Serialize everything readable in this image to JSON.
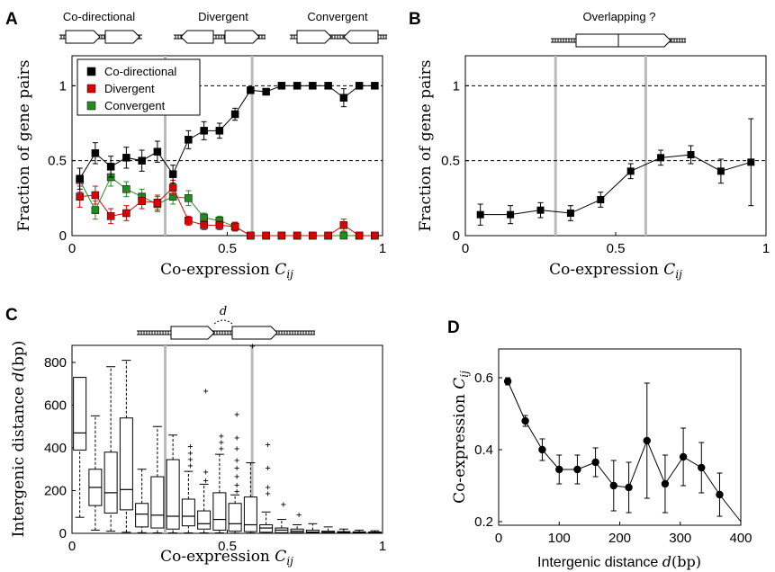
{
  "figure": {
    "panel_letters": [
      "A",
      "B",
      "C",
      "D"
    ],
    "schematic_labels": {
      "co_directional": "Co-directional",
      "divergent": "Divergent",
      "convergent": "Convergent",
      "overlapping": "Overlapping ?",
      "distance_symbol": "d"
    }
  },
  "chart_data": [
    {
      "panel": "A",
      "type": "line",
      "xlabel": "Co-expression C_ij",
      "ylabel": "Fraction of gene pairs",
      "xlim": [
        0,
        1
      ],
      "ylim": [
        0,
        1.2
      ],
      "xticks": [
        "0",
        "0.5",
        "1"
      ],
      "yticks": [
        "0",
        "0.5",
        "1"
      ],
      "grid": false,
      "legend_position": "top-left",
      "reference_lines_y": [
        0.5,
        1.0
      ],
      "vertical_lines_x": [
        0.3,
        0.58
      ],
      "x": [
        0.025,
        0.075,
        0.125,
        0.175,
        0.225,
        0.275,
        0.325,
        0.375,
        0.425,
        0.475,
        0.525,
        0.575,
        0.625,
        0.675,
        0.725,
        0.775,
        0.825,
        0.875,
        0.925,
        0.975
      ],
      "series": [
        {
          "name": "Co-directional",
          "color": "#000000",
          "values": [
            0.38,
            0.55,
            0.46,
            0.52,
            0.5,
            0.56,
            0.41,
            0.64,
            0.7,
            0.7,
            0.81,
            0.97,
            0.96,
            1.0,
            1.0,
            1.0,
            1.0,
            0.92,
            1.0,
            1.0
          ],
          "errors": [
            0.07,
            0.07,
            0.07,
            0.07,
            0.07,
            0.07,
            0.06,
            0.06,
            0.06,
            0.05,
            0.04,
            0.02,
            0.02,
            0.0,
            0.0,
            0.0,
            0.0,
            0.06,
            0.0,
            0.0
          ]
        },
        {
          "name": "Divergent",
          "color": "#dd0000",
          "values": [
            0.26,
            0.27,
            0.13,
            0.15,
            0.23,
            0.22,
            0.32,
            0.1,
            0.07,
            0.07,
            0.06,
            0.0,
            0.0,
            0.0,
            0.0,
            0.0,
            0.0,
            0.07,
            0.0,
            0.0
          ],
          "errors": [
            0.07,
            0.06,
            0.05,
            0.05,
            0.05,
            0.05,
            0.05,
            0.03,
            0.03,
            0.03,
            0.03,
            0.0,
            0.0,
            0.0,
            0.0,
            0.0,
            0.0,
            0.04,
            0.0,
            0.0
          ]
        },
        {
          "name": "Convergent",
          "color": "#228b22",
          "values": [
            0.37,
            0.17,
            0.39,
            0.31,
            0.26,
            0.21,
            0.26,
            0.25,
            0.12,
            0.1,
            0.06,
            0.0,
            0.0,
            0.0,
            0.0,
            0.0,
            0.0,
            0.0,
            0.0,
            0.0
          ],
          "errors": [
            0.08,
            0.06,
            0.06,
            0.05,
            0.05,
            0.05,
            0.05,
            0.05,
            0.03,
            0.03,
            0.02,
            0.0,
            0.0,
            0.0,
            0.0,
            0.0,
            0.0,
            0.0,
            0.0,
            0.0
          ]
        }
      ]
    },
    {
      "panel": "B",
      "type": "line",
      "xlabel": "Co-expression C_ij",
      "ylabel": "Fraction of gene pairs",
      "xlim": [
        0,
        1
      ],
      "ylim": [
        0,
        1.2
      ],
      "xticks": [
        "0",
        "0.5",
        "1"
      ],
      "yticks": [
        "0",
        "0.5",
        "1"
      ],
      "grid": false,
      "reference_lines_y": [
        0.5,
        1.0
      ],
      "vertical_lines_x": [
        0.3,
        0.6
      ],
      "x": [
        0.05,
        0.15,
        0.25,
        0.35,
        0.45,
        0.55,
        0.65,
        0.75,
        0.85,
        0.95
      ],
      "series": [
        {
          "color": "#000000",
          "values": [
            0.14,
            0.14,
            0.17,
            0.15,
            0.24,
            0.43,
            0.52,
            0.54,
            0.43,
            0.49
          ],
          "errors": [
            0.07,
            0.06,
            0.05,
            0.05,
            0.05,
            0.05,
            0.05,
            0.06,
            0.08,
            0.29
          ]
        }
      ]
    },
    {
      "panel": "C",
      "type": "box",
      "xlabel": "Co-expression C_ij",
      "ylabel": "Intergenic distance d(bp)",
      "xlim": [
        0,
        1
      ],
      "ylim": [
        0,
        880
      ],
      "xticks": [
        "0",
        "0.5",
        "1"
      ],
      "yticks": [
        "0",
        "200",
        "400",
        "600",
        "800"
      ],
      "grid": false,
      "vertical_lines_x": [
        0.3,
        0.58
      ],
      "x": [
        0.025,
        0.075,
        0.125,
        0.175,
        0.225,
        0.275,
        0.325,
        0.375,
        0.425,
        0.475,
        0.525,
        0.575,
        0.625,
        0.675,
        0.725,
        0.775,
        0.825,
        0.875,
        0.925,
        0.975
      ],
      "boxes": [
        {
          "lo": 75,
          "q1": 390,
          "med": 470,
          "q3": 730,
          "hi": 730,
          "out": []
        },
        {
          "lo": 15,
          "q1": 130,
          "med": 215,
          "q3": 300,
          "hi": 550,
          "out": []
        },
        {
          "lo": 10,
          "q1": 95,
          "med": 190,
          "q3": 380,
          "hi": 780,
          "out": []
        },
        {
          "lo": 5,
          "q1": 110,
          "med": 205,
          "q3": 540,
          "hi": 810,
          "out": []
        },
        {
          "lo": 3,
          "q1": 30,
          "med": 90,
          "q3": 140,
          "hi": 300,
          "out": []
        },
        {
          "lo": 2,
          "q1": 25,
          "med": 85,
          "q3": 265,
          "hi": 500,
          "out": []
        },
        {
          "lo": 2,
          "q1": 20,
          "med": 80,
          "q3": 345,
          "hi": 460,
          "out": []
        },
        {
          "lo": 2,
          "q1": 35,
          "med": 80,
          "q3": 160,
          "hi": 290,
          "out": [
            320,
            350,
            380,
            410
          ]
        },
        {
          "lo": 2,
          "q1": 20,
          "med": 45,
          "q3": 105,
          "hi": 230,
          "out": [
            250,
            290,
            670
          ]
        },
        {
          "lo": 2,
          "q1": 15,
          "med": 65,
          "q3": 190,
          "hi": 370,
          "out": [
            400,
            430,
            460
          ]
        },
        {
          "lo": 1,
          "q1": 10,
          "med": 45,
          "q3": 140,
          "hi": 180,
          "out": [
            200,
            230,
            270,
            310,
            345,
            400,
            450,
            560
          ]
        },
        {
          "lo": 1,
          "q1": 8,
          "med": 40,
          "q3": 170,
          "hi": 330,
          "out": [
            880
          ]
        },
        {
          "lo": 1,
          "q1": 5,
          "med": 25,
          "q3": 40,
          "hi": 100,
          "out": [
            190,
            220,
            310,
            420
          ]
        },
        {
          "lo": 1,
          "q1": 3,
          "med": 15,
          "q3": 25,
          "hi": 65,
          "out": [
            140
          ]
        },
        {
          "lo": 1,
          "q1": 3,
          "med": 10,
          "q3": 20,
          "hi": 40,
          "out": [
            90
          ]
        },
        {
          "lo": 1,
          "q1": 2,
          "med": 6,
          "q3": 15,
          "hi": 45,
          "out": []
        },
        {
          "lo": 1,
          "q1": 2,
          "med": 5,
          "q3": 10,
          "hi": 30,
          "out": []
        },
        {
          "lo": 1,
          "q1": 2,
          "med": 4,
          "q3": 8,
          "hi": 20,
          "out": []
        },
        {
          "lo": 1,
          "q1": 2,
          "med": 4,
          "q3": 7,
          "hi": 15,
          "out": []
        },
        {
          "lo": 1,
          "q1": 2,
          "med": 3,
          "q3": 6,
          "hi": 12,
          "out": []
        }
      ]
    },
    {
      "panel": "D",
      "type": "line",
      "xlabel": "Intergenic distance d(bp)",
      "ylabel": "Co-expression C_ij",
      "xlim": [
        0,
        400
      ],
      "ylim": [
        0.19,
        0.68
      ],
      "xticks": [
        "0",
        "100",
        "200",
        "300",
        "400"
      ],
      "yticks": [
        "0.2",
        "0.4",
        "0.6"
      ],
      "grid": false,
      "x": [
        15,
        44,
        72,
        100,
        130,
        160,
        190,
        215,
        245,
        275,
        305,
        335,
        365,
        400
      ],
      "series": [
        {
          "color": "#000000",
          "values": [
            0.59,
            0.48,
            0.4,
            0.345,
            0.345,
            0.365,
            0.3,
            0.295,
            0.425,
            0.305,
            0.38,
            0.35,
            0.275,
            0.2
          ],
          "errors": [
            0.01,
            0.015,
            0.03,
            0.04,
            0.04,
            0.04,
            0.07,
            0.07,
            0.16,
            0.08,
            0.08,
            0.07,
            0.06,
            0.0
          ]
        }
      ]
    }
  ]
}
